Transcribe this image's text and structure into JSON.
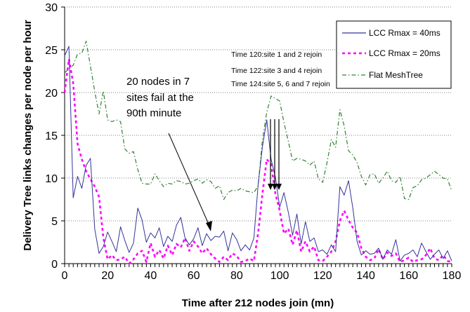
{
  "chart_data": {
    "type": "line",
    "xlabel": "Time after 212 nodes join (mn)",
    "ylabel": "Delivery Tree links changes per node per hour",
    "xlim": [
      0,
      180
    ],
    "ylim": [
      0,
      30
    ],
    "xticks": [
      0,
      20,
      40,
      60,
      80,
      100,
      120,
      140,
      160,
      180
    ],
    "yticks": [
      0,
      5,
      10,
      15,
      20,
      25,
      30
    ],
    "grid": "horizontal dotted",
    "legend_position": "top-right",
    "series": [
      {
        "name": "LCC Rmax = 40ms",
        "color": "#33339a",
        "style": "solid",
        "x": [
          0,
          2,
          4,
          6,
          8,
          10,
          12,
          14,
          16,
          18,
          20,
          22,
          24,
          26,
          28,
          30,
          32,
          34,
          36,
          38,
          40,
          42,
          44,
          46,
          48,
          50,
          52,
          54,
          56,
          58,
          60,
          62,
          64,
          66,
          68,
          70,
          72,
          74,
          76,
          78,
          80,
          82,
          84,
          86,
          88,
          90,
          92,
          94,
          96,
          98,
          100,
          102,
          104,
          106,
          108,
          110,
          112,
          114,
          116,
          118,
          120,
          122,
          124,
          126,
          128,
          130,
          132,
          134,
          136,
          138,
          140,
          142,
          144,
          146,
          148,
          150,
          152,
          154,
          156,
          158,
          160,
          162,
          164,
          166,
          168,
          170,
          172,
          174,
          176,
          178,
          180
        ],
        "values": [
          24.3,
          25.4,
          7.7,
          10.2,
          8.8,
          11.5,
          12.3,
          4.0,
          1.2,
          2.0,
          3.7,
          2.6,
          1.4,
          4.3,
          2.7,
          1.3,
          2.4,
          6.5,
          5.1,
          2.5,
          3.6,
          3.0,
          4.2,
          2.0,
          3.2,
          2.6,
          4.5,
          5.4,
          3.0,
          2.2,
          2.9,
          4.2,
          2.1,
          3.5,
          2.7,
          3.2,
          3.1,
          3.8,
          1.5,
          3.6,
          2.8,
          1.5,
          2.2,
          1.6,
          3.0,
          9.3,
          13.7,
          16.8,
          12.2,
          10.1,
          6.6,
          8.3,
          6.0,
          3.3,
          5.8,
          2.3,
          4.9,
          2.6,
          3.0,
          1.4,
          1.6,
          1.1,
          2.2,
          1.4,
          9.0,
          8.0,
          9.7,
          6.5,
          2.6,
          1.0,
          1.5,
          1.1,
          1.2,
          1.8,
          0.5,
          1.6,
          1.1,
          2.8,
          0.3,
          1.0,
          1.2,
          1.6,
          0.8,
          2.4,
          1.4,
          0.5,
          1.1,
          1.6,
          0.6,
          1.5,
          0.3
        ]
      },
      {
        "name": "LCC Rmax = 20ms",
        "color": "#ff00ff",
        "style": "dashed",
        "x": [
          0,
          2,
          4,
          6,
          8,
          10,
          12,
          14,
          16,
          18,
          20,
          22,
          24,
          26,
          28,
          30,
          32,
          34,
          36,
          38,
          40,
          42,
          44,
          46,
          48,
          50,
          52,
          54,
          56,
          58,
          60,
          62,
          64,
          66,
          68,
          70,
          72,
          74,
          76,
          78,
          80,
          82,
          84,
          86,
          88,
          90,
          92,
          94,
          96,
          98,
          100,
          102,
          104,
          106,
          108,
          110,
          112,
          114,
          116,
          118,
          120,
          122,
          124,
          126,
          128,
          130,
          132,
          134,
          136,
          138,
          140,
          142,
          144,
          146,
          148,
          150,
          152,
          154,
          156,
          158,
          160,
          162,
          164,
          166,
          168,
          170,
          172,
          174,
          176,
          178,
          180
        ],
        "values": [
          20.0,
          23.9,
          21.1,
          14.0,
          12.2,
          10.8,
          9.9,
          9.0,
          7.8,
          3.0,
          0.5,
          1.0,
          0.4,
          0.5,
          0.8,
          0.0,
          0.5,
          1.2,
          1.5,
          0.2,
          2.4,
          0.8,
          1.6,
          0.6,
          2.1,
          1.0,
          2.3,
          1.9,
          3.0,
          1.5,
          2.6,
          2.0,
          1.2,
          1.8,
          1.1,
          0.6,
          0.2,
          0.8,
          0.4,
          1.2,
          0.9,
          0.2,
          0.3,
          0.6,
          0.3,
          3.6,
          8.2,
          12.2,
          11.6,
          8.2,
          6.2,
          3.5,
          4.1,
          2.2,
          3.9,
          1.4,
          2.6,
          1.4,
          2.0,
          0.4,
          0.3,
          0.8,
          1.4,
          2.6,
          5.0,
          6.2,
          5.1,
          4.2,
          3.6,
          1.8,
          0.8,
          0.4,
          0.6,
          1.7,
          0.5,
          1.3,
          0.9,
          1.2,
          0.2,
          0.4,
          0.7,
          0.2,
          0.4,
          0.5,
          1.0,
          1.8,
          0.6,
          0.4,
          1.0,
          0.3,
          0.2
        ]
      },
      {
        "name": "Flat MeshTree",
        "color": "#338033",
        "style": "dashdot",
        "x": [
          0,
          2,
          4,
          6,
          8,
          10,
          12,
          14,
          16,
          18,
          20,
          22,
          24,
          26,
          28,
          30,
          32,
          34,
          36,
          38,
          40,
          42,
          44,
          46,
          48,
          50,
          52,
          54,
          56,
          58,
          60,
          62,
          64,
          66,
          68,
          70,
          72,
          74,
          76,
          78,
          80,
          82,
          84,
          86,
          88,
          90,
          92,
          94,
          96,
          98,
          100,
          102,
          104,
          106,
          108,
          110,
          112,
          114,
          116,
          118,
          120,
          122,
          124,
          126,
          128,
          130,
          132,
          134,
          136,
          138,
          140,
          142,
          144,
          146,
          148,
          150,
          152,
          154,
          156,
          158,
          160,
          162,
          164,
          166,
          168,
          170,
          172,
          174,
          176,
          178,
          180
        ],
        "values": [
          22.3,
          22.8,
          23.2,
          24.5,
          24.6,
          26.0,
          23.1,
          20.1,
          17.5,
          20.2,
          16.8,
          16.6,
          16.8,
          16.6,
          13.4,
          12.9,
          13.1,
          11.0,
          9.4,
          9.3,
          9.3,
          10.5,
          9.7,
          9.0,
          9.4,
          9.3,
          9.7,
          9.6,
          9.3,
          9.4,
          9.7,
          9.9,
          9.4,
          9.8,
          9.6,
          8.8,
          9.1,
          7.5,
          8.3,
          8.6,
          8.5,
          8.8,
          8.5,
          8.4,
          8.3,
          9.1,
          14.5,
          17.7,
          19.6,
          19.3,
          19.0,
          16.5,
          14.3,
          12.0,
          12.3,
          12.2,
          12.0,
          11.5,
          12.0,
          9.9,
          9.5,
          11.8,
          14.5,
          13.6,
          18.0,
          16.1,
          13.2,
          12.7,
          11.8,
          10.2,
          9.2,
          10.4,
          10.5,
          9.4,
          10.0,
          10.8,
          9.7,
          9.5,
          10.2,
          7.6,
          7.5,
          8.9,
          9.1,
          9.8,
          10.0,
          10.4,
          10.8,
          10.4,
          10.0,
          9.9,
          8.5
        ]
      }
    ],
    "annotations": [
      {
        "text": "Time 120:site 1 and 2 rejoin"
      },
      {
        "text": "Time 122:site 3 and 4 rejoin"
      },
      {
        "text": "Time 124:site 5, 6 and 7 rejoin"
      },
      {
        "lines": [
          "20 nodes in 7",
          "sites fail at the",
          "90th minute"
        ]
      }
    ]
  }
}
